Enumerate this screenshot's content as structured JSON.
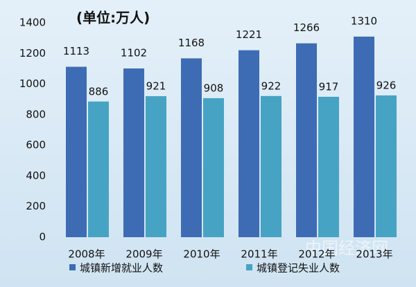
{
  "chart_data": {
    "type": "bar",
    "title": "(单位:万人)",
    "categories": [
      "2008年",
      "2009年",
      "2010年",
      "2011年",
      "2012年",
      "2013年"
    ],
    "series": [
      {
        "name": "城镇新增就业人数",
        "color": "#3e6cb4",
        "values": [
          1113,
          1102,
          1168,
          1221,
          1266,
          1310
        ]
      },
      {
        "name": "城镇登记失业人数",
        "color": "#47a3c3",
        "values": [
          886,
          921,
          908,
          922,
          917,
          926
        ]
      }
    ],
    "ylim": [
      0,
      1400
    ],
    "yticks": [
      0,
      200,
      400,
      600,
      800,
      1000,
      1200,
      1400
    ],
    "grid": false,
    "watermark": "中国经济网"
  }
}
